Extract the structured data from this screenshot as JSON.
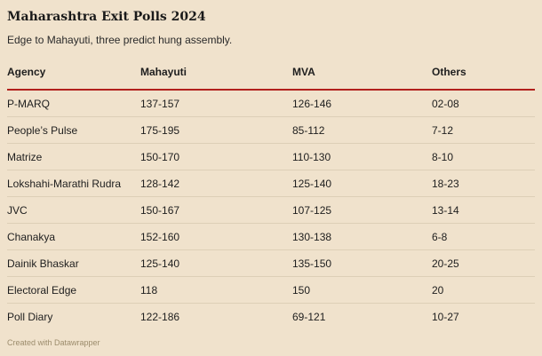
{
  "chart_data": {
    "type": "table",
    "title": "Maharashtra Exit Polls 2024",
    "subtitle": "Edge to Mahayuti, three predict hung assembly.",
    "columns": [
      "Agency",
      "Mahayuti",
      "MVA",
      "Others"
    ],
    "rows": [
      [
        "P-MARQ",
        "137-157",
        "126-146",
        "02-08"
      ],
      [
        "People’s Pulse",
        "175-195",
        "85-112",
        "7-12"
      ],
      [
        "Matrize",
        "150-170",
        "110-130",
        "8-10"
      ],
      [
        "Lokshahi-Marathi Rudra",
        "128-142",
        "125-140",
        "18-23"
      ],
      [
        "JVC",
        "150-167",
        "107-125",
        "13-14"
      ],
      [
        "Chanakya",
        "152-160",
        "130-138",
        "6-8"
      ],
      [
        "Dainik Bhaskar",
        "125-140",
        "135-150",
        "20-25"
      ],
      [
        "Electoral Edge",
        "118",
        "150",
        "20"
      ],
      [
        "Poll Diary",
        "122-186",
        "69-121",
        "10-27"
      ]
    ],
    "header_rule_color": "#b2201c"
  },
  "credit": "Created with Datawrapper"
}
